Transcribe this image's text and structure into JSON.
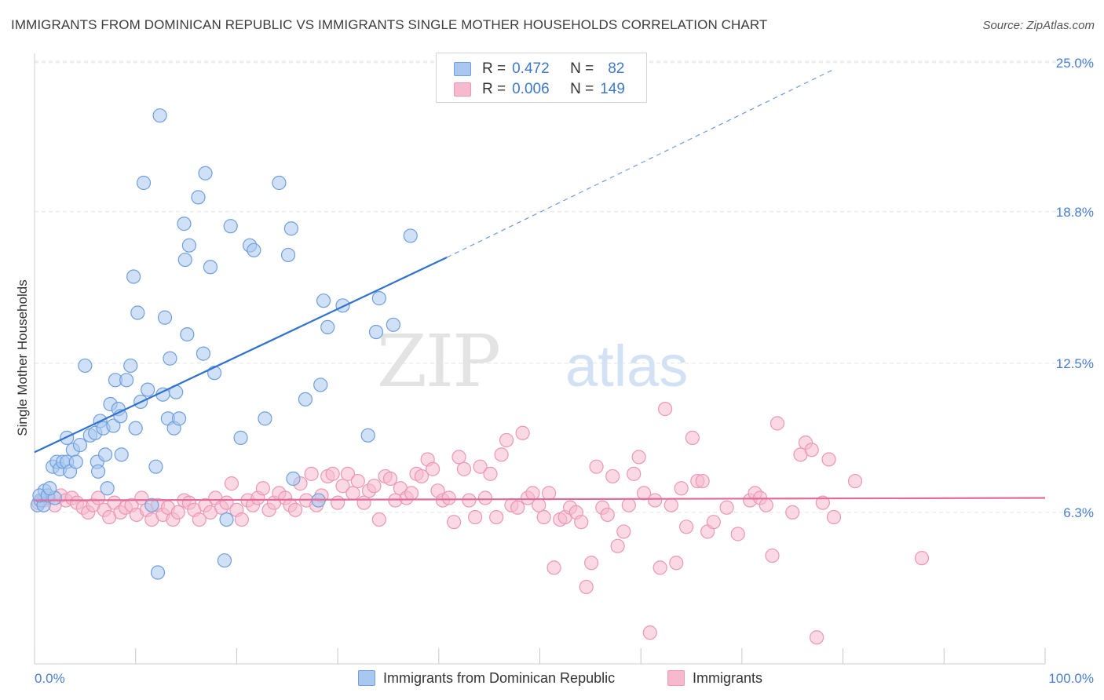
{
  "title": "IMMIGRANTS FROM DOMINICAN REPUBLIC VS IMMIGRANTS SINGLE MOTHER HOUSEHOLDS CORRELATION CHART",
  "source": "Source: ZipAtlas.com",
  "watermark": {
    "zip": "ZIP",
    "atlas": "atlas"
  },
  "legend": {
    "series1": {
      "r_label": "R =",
      "r_value": "0.472",
      "n_label": "N =",
      "n_value": "82"
    },
    "series2": {
      "r_label": "R =",
      "r_value": "0.006",
      "n_label": "N =",
      "n_value": "149"
    }
  },
  "bottom_legend": {
    "series1": "Immigrants from Dominican Republic",
    "series2": "Immigrants"
  },
  "colors": {
    "series1_fill": "#a9c8f0",
    "series1_stroke": "#6f9fdc",
    "series1_line": "#2f72d0",
    "series2_fill": "#f6b9cd",
    "series2_stroke": "#ec97b5",
    "series2_line": "#e26c97",
    "tick_text": "#4a7fcf",
    "grid": "#e4e4e4"
  },
  "chart_data": {
    "type": "scatter",
    "xlabel": "",
    "ylabel": "Single Mother Households",
    "x_tick_labels": [
      "0.0%",
      "100.0%"
    ],
    "y_tick_labels": [
      "6.3%",
      "12.5%",
      "18.8%",
      "25.0%"
    ],
    "y_ticks": [
      6.3,
      12.5,
      18.8,
      25.0
    ],
    "xlim": [
      0,
      100
    ],
    "ylim": [
      0,
      25.8
    ],
    "grid": true,
    "series": [
      {
        "name": "Immigrants from Dominican Republic",
        "trend": {
          "x": [
            0,
            40.8
          ],
          "y": [
            8.8,
            16.9
          ],
          "dashed_to": [
            79,
            24.7
          ]
        },
        "points": [
          [
            0.3,
            6.6
          ],
          [
            0.6,
            6.8
          ],
          [
            0.9,
            6.6
          ],
          [
            1.0,
            7.2
          ],
          [
            0.5,
            7.0
          ],
          [
            1.3,
            7.0
          ],
          [
            2.0,
            6.9
          ],
          [
            1.5,
            7.3
          ],
          [
            1.8,
            8.2
          ],
          [
            2.2,
            8.4
          ],
          [
            2.5,
            8.1
          ],
          [
            2.8,
            8.4
          ],
          [
            3.2,
            8.4
          ],
          [
            3.5,
            8.0
          ],
          [
            3.2,
            9.4
          ],
          [
            3.8,
            8.9
          ],
          [
            4.1,
            8.4
          ],
          [
            4.5,
            9.1
          ],
          [
            5.0,
            12.4
          ],
          [
            5.5,
            9.5
          ],
          [
            6.0,
            9.6
          ],
          [
            6.2,
            8.4
          ],
          [
            6.3,
            8.0
          ],
          [
            6.5,
            10.1
          ],
          [
            6.8,
            9.8
          ],
          [
            7.0,
            8.7
          ],
          [
            7.2,
            7.3
          ],
          [
            7.5,
            10.8
          ],
          [
            7.8,
            9.9
          ],
          [
            8.0,
            11.8
          ],
          [
            8.3,
            10.6
          ],
          [
            8.5,
            10.3
          ],
          [
            8.6,
            8.7
          ],
          [
            9.1,
            11.8
          ],
          [
            9.5,
            12.4
          ],
          [
            9.8,
            16.1
          ],
          [
            10.0,
            9.8
          ],
          [
            10.2,
            14.6
          ],
          [
            10.5,
            10.9
          ],
          [
            10.8,
            20.0
          ],
          [
            11.2,
            11.4
          ],
          [
            11.6,
            6.6
          ],
          [
            12.0,
            8.2
          ],
          [
            12.2,
            3.8
          ],
          [
            12.4,
            22.8
          ],
          [
            12.7,
            11.2
          ],
          [
            12.9,
            14.4
          ],
          [
            13.2,
            10.2
          ],
          [
            13.4,
            12.7
          ],
          [
            13.8,
            9.8
          ],
          [
            14.0,
            11.3
          ],
          [
            14.3,
            10.2
          ],
          [
            14.8,
            18.3
          ],
          [
            14.9,
            16.8
          ],
          [
            15.1,
            13.7
          ],
          [
            15.3,
            17.4
          ],
          [
            16.2,
            19.4
          ],
          [
            16.7,
            12.9
          ],
          [
            16.9,
            20.4
          ],
          [
            17.4,
            16.5
          ],
          [
            17.8,
            12.1
          ],
          [
            18.8,
            4.3
          ],
          [
            19.0,
            6.0
          ],
          [
            19.4,
            18.2
          ],
          [
            20.4,
            9.4
          ],
          [
            21.3,
            17.4
          ],
          [
            21.7,
            17.2
          ],
          [
            22.8,
            10.2
          ],
          [
            24.2,
            20.0
          ],
          [
            25.1,
            17.0
          ],
          [
            25.4,
            18.1
          ],
          [
            25.6,
            7.7
          ],
          [
            26.8,
            11.0
          ],
          [
            28.1,
            6.8
          ],
          [
            28.3,
            11.6
          ],
          [
            28.6,
            15.1
          ],
          [
            29.0,
            14.0
          ],
          [
            30.5,
            14.9
          ],
          [
            33.0,
            9.5
          ],
          [
            33.8,
            13.8
          ],
          [
            34.1,
            15.2
          ],
          [
            35.5,
            14.1
          ],
          [
            37.2,
            17.8
          ]
        ]
      },
      {
        "name": "Immigrants",
        "trend": {
          "x": [
            0,
            100
          ],
          "y": [
            6.8,
            6.9
          ]
        },
        "points": [
          [
            0.4,
            6.7
          ],
          [
            0.9,
            6.8
          ],
          [
            1.4,
            6.9
          ],
          [
            2.0,
            6.6
          ],
          [
            2.6,
            7.0
          ],
          [
            3.1,
            6.8
          ],
          [
            3.7,
            6.9
          ],
          [
            4.2,
            6.7
          ],
          [
            4.8,
            6.5
          ],
          [
            5.3,
            6.3
          ],
          [
            5.8,
            6.6
          ],
          [
            6.3,
            6.9
          ],
          [
            6.9,
            6.4
          ],
          [
            7.4,
            6.1
          ],
          [
            7.9,
            6.7
          ],
          [
            8.5,
            6.3
          ],
          [
            9.0,
            6.5
          ],
          [
            9.6,
            6.6
          ],
          [
            10.1,
            6.2
          ],
          [
            10.6,
            6.9
          ],
          [
            11.1,
            6.4
          ],
          [
            11.6,
            6.0
          ],
          [
            12.2,
            6.6
          ],
          [
            12.7,
            6.2
          ],
          [
            13.2,
            6.5
          ],
          [
            13.7,
            6.0
          ],
          [
            14.2,
            6.3
          ],
          [
            14.8,
            6.8
          ],
          [
            15.3,
            6.7
          ],
          [
            15.8,
            6.4
          ],
          [
            16.3,
            6.0
          ],
          [
            16.9,
            6.6
          ],
          [
            17.4,
            6.3
          ],
          [
            17.9,
            6.9
          ],
          [
            18.5,
            6.5
          ],
          [
            19.0,
            6.7
          ],
          [
            19.5,
            7.5
          ],
          [
            20.0,
            6.4
          ],
          [
            20.5,
            6.0
          ],
          [
            21.1,
            6.8
          ],
          [
            21.6,
            6.6
          ],
          [
            22.1,
            6.9
          ],
          [
            22.6,
            7.3
          ],
          [
            23.2,
            6.4
          ],
          [
            23.7,
            6.7
          ],
          [
            24.2,
            7.1
          ],
          [
            24.8,
            6.9
          ],
          [
            25.3,
            6.6
          ],
          [
            25.8,
            6.4
          ],
          [
            26.3,
            7.5
          ],
          [
            26.9,
            6.8
          ],
          [
            27.4,
            7.9
          ],
          [
            27.9,
            6.6
          ],
          [
            28.4,
            7.0
          ],
          [
            29.0,
            7.8
          ],
          [
            29.5,
            7.9
          ],
          [
            30.0,
            6.7
          ],
          [
            30.5,
            7.4
          ],
          [
            31.0,
            7.9
          ],
          [
            31.5,
            7.1
          ],
          [
            32.0,
            7.6
          ],
          [
            32.6,
            6.7
          ],
          [
            33.1,
            7.2
          ],
          [
            33.6,
            7.4
          ],
          [
            34.1,
            6.0
          ],
          [
            34.7,
            7.8
          ],
          [
            35.2,
            7.7
          ],
          [
            35.7,
            6.8
          ],
          [
            36.2,
            7.3
          ],
          [
            36.8,
            6.9
          ],
          [
            37.3,
            7.1
          ],
          [
            37.8,
            7.9
          ],
          [
            38.3,
            7.8
          ],
          [
            38.9,
            8.5
          ],
          [
            39.4,
            8.1
          ],
          [
            39.9,
            7.2
          ],
          [
            40.4,
            6.8
          ],
          [
            41.0,
            6.9
          ],
          [
            41.5,
            5.9
          ],
          [
            42.0,
            8.6
          ],
          [
            42.5,
            8.1
          ],
          [
            43.0,
            6.8
          ],
          [
            43.6,
            6.1
          ],
          [
            44.1,
            8.2
          ],
          [
            44.6,
            6.9
          ],
          [
            45.1,
            7.9
          ],
          [
            45.7,
            6.1
          ],
          [
            46.2,
            8.7
          ],
          [
            46.7,
            9.3
          ],
          [
            47.2,
            6.6
          ],
          [
            47.8,
            6.5
          ],
          [
            48.3,
            9.6
          ],
          [
            48.8,
            6.9
          ],
          [
            49.3,
            7.1
          ],
          [
            49.9,
            6.6
          ],
          [
            50.4,
            6.1
          ],
          [
            50.9,
            7.1
          ],
          [
            51.4,
            4.0
          ],
          [
            52.0,
            6.0
          ],
          [
            52.5,
            6.1
          ],
          [
            53.0,
            6.5
          ],
          [
            53.6,
            6.3
          ],
          [
            54.1,
            5.9
          ],
          [
            54.6,
            3.2
          ],
          [
            55.1,
            4.2
          ],
          [
            55.6,
            8.2
          ],
          [
            56.2,
            6.5
          ],
          [
            56.7,
            6.2
          ],
          [
            57.2,
            7.8
          ],
          [
            57.7,
            4.9
          ],
          [
            58.3,
            5.5
          ],
          [
            58.8,
            6.6
          ],
          [
            59.3,
            7.9
          ],
          [
            59.8,
            8.6
          ],
          [
            60.3,
            7.1
          ],
          [
            60.9,
            1.3
          ],
          [
            61.4,
            6.8
          ],
          [
            61.9,
            4.0
          ],
          [
            62.4,
            10.6
          ],
          [
            63.0,
            6.6
          ],
          [
            63.5,
            4.2
          ],
          [
            64.0,
            7.3
          ],
          [
            64.5,
            5.7
          ],
          [
            65.1,
            9.4
          ],
          [
            65.6,
            7.6
          ],
          [
            66.1,
            7.6
          ],
          [
            66.6,
            5.5
          ],
          [
            67.2,
            5.9
          ],
          [
            68.5,
            6.5
          ],
          [
            69.6,
            5.4
          ],
          [
            70.8,
            6.8
          ],
          [
            71.3,
            7.1
          ],
          [
            71.8,
            6.9
          ],
          [
            72.4,
            6.6
          ],
          [
            73.0,
            4.5
          ],
          [
            73.5,
            10.0
          ],
          [
            75.0,
            6.3
          ],
          [
            75.8,
            8.7
          ],
          [
            76.3,
            9.2
          ],
          [
            76.9,
            8.9
          ],
          [
            77.4,
            1.1
          ],
          [
            78.0,
            6.7
          ],
          [
            78.6,
            8.5
          ],
          [
            79.1,
            6.1
          ],
          [
            81.2,
            7.6
          ],
          [
            87.8,
            4.4
          ]
        ]
      }
    ]
  }
}
